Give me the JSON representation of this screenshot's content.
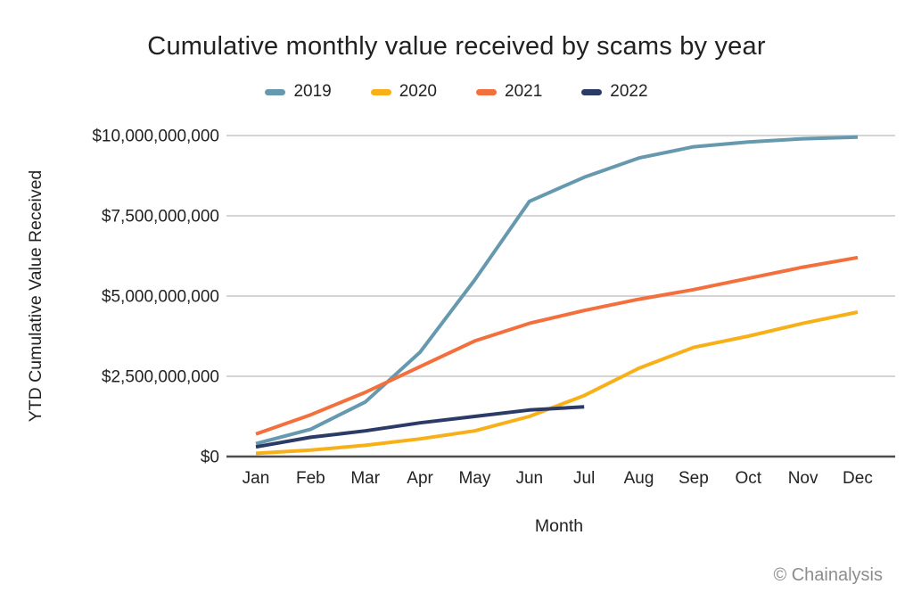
{
  "page": {
    "background": "#ffffff"
  },
  "chart_data": {
    "type": "line",
    "title": "Cumulative monthly value received by scams by year",
    "xlabel": "Month",
    "ylabel": "YTD Cumulative Value Received",
    "categories": [
      "Jan",
      "Feb",
      "Mar",
      "Apr",
      "May",
      "Jun",
      "Jul",
      "Aug",
      "Sep",
      "Oct",
      "Nov",
      "Dec"
    ],
    "ylim": [
      0,
      10000000000
    ],
    "yticks": [
      0,
      2500000000,
      5000000000,
      7500000000,
      10000000000
    ],
    "ytick_labels": [
      "$0",
      "$2,500,000,000",
      "$5,000,000,000",
      "$7,500,000,000",
      "$10,000,000,000"
    ],
    "grid": "horizontal",
    "legend_position": "top-center",
    "series": [
      {
        "name": "2019",
        "color": "#6699AE",
        "values": [
          400000000,
          850000000,
          1700000000,
          3250000000,
          5500000000,
          7950000000,
          8700000000,
          9300000000,
          9650000000,
          9800000000,
          9900000000,
          9950000000
        ]
      },
      {
        "name": "2020",
        "color": "#F8B019",
        "values": [
          100000000,
          200000000,
          350000000,
          550000000,
          800000000,
          1250000000,
          1900000000,
          2750000000,
          3400000000,
          3750000000,
          4150000000,
          4500000000
        ]
      },
      {
        "name": "2021",
        "color": "#F3703E",
        "values": [
          700000000,
          1300000000,
          2000000000,
          2800000000,
          3600000000,
          4150000000,
          4550000000,
          4900000000,
          5200000000,
          5550000000,
          5900000000,
          6200000000
        ]
      },
      {
        "name": "2022",
        "color": "#2B3A67",
        "values": [
          300000000,
          600000000,
          800000000,
          1050000000,
          1250000000,
          1450000000,
          1550000000
        ]
      }
    ]
  },
  "footer": {
    "watermark": "© Chainalysis"
  },
  "style": {
    "gridline_color": "#D5D5D5",
    "axis_line_color": "#4D4D4D",
    "text_color": "#222222",
    "watermark_color": "#8D8D8D"
  }
}
